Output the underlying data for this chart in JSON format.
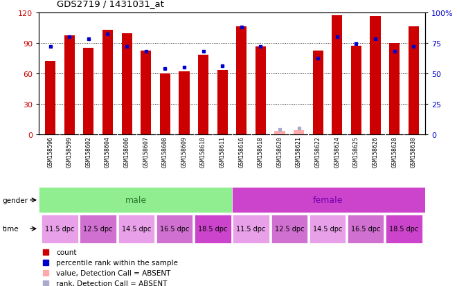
{
  "title": "GDS2719 / 1431031_at",
  "samples": [
    "GSM158596",
    "GSM158599",
    "GSM158602",
    "GSM158604",
    "GSM158606",
    "GSM158607",
    "GSM158608",
    "GSM158609",
    "GSM158610",
    "GSM158611",
    "GSM158616",
    "GSM158618",
    "GSM158620",
    "GSM158621",
    "GSM158622",
    "GSM158624",
    "GSM158625",
    "GSM158626",
    "GSM158628",
    "GSM158630"
  ],
  "count_values": [
    72,
    97,
    85,
    103,
    99,
    82,
    60,
    62,
    78,
    63,
    106,
    86,
    3,
    4,
    82,
    117,
    87,
    116,
    90,
    106
  ],
  "percentile_values": [
    72,
    80,
    78,
    82,
    72,
    68,
    54,
    55,
    68,
    56,
    88,
    72,
    4,
    5,
    62,
    80,
    74,
    78,
    68,
    72
  ],
  "absent_flags": [
    false,
    false,
    false,
    false,
    false,
    false,
    false,
    false,
    false,
    false,
    false,
    false,
    true,
    true,
    false,
    false,
    false,
    false,
    false,
    false
  ],
  "time_labels": [
    "11.5 dpc",
    "12.5 dpc",
    "14.5 dpc",
    "16.5 dpc",
    "18.5 dpc"
  ],
  "time_colors": [
    "#e8a0e8",
    "#d070d0",
    "#e8a0e8",
    "#d070d0",
    "#cc44cc"
  ],
  "ylim_left": [
    0,
    120
  ],
  "ylim_right": [
    0,
    100
  ],
  "left_yticks": [
    0,
    30,
    60,
    90,
    120
  ],
  "right_yticks": [
    0,
    25,
    50,
    75,
    100
  ],
  "bar_color": "#cc0000",
  "bar_color_absent": "#ffaaaa",
  "percentile_color": "#0000cc",
  "percentile_color_absent": "#aaaacc",
  "bg_color": "#ffffff",
  "bar_width": 0.55,
  "male_bg": "#90ee90",
  "female_bg": "#cc44cc",
  "xticklabel_bg": "#cccccc",
  "legend_items": [
    [
      "#cc0000",
      "count"
    ],
    [
      "#0000cc",
      "percentile rank within the sample"
    ],
    [
      "#ffaaaa",
      "value, Detection Call = ABSENT"
    ],
    [
      "#aaaacc",
      "rank, Detection Call = ABSENT"
    ]
  ]
}
